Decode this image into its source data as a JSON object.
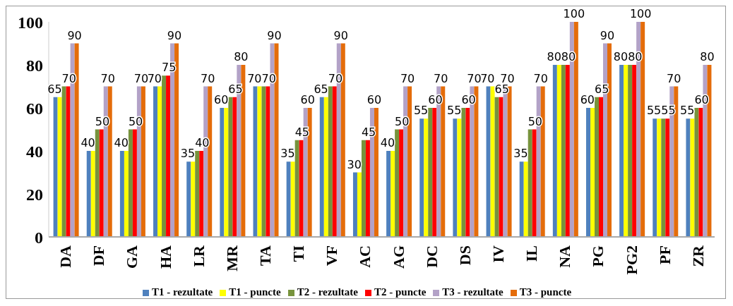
{
  "chart_data": {
    "type": "bar",
    "categories": [
      "DA",
      "DF",
      "GA",
      "HA",
      "LR",
      "MR",
      "TA",
      "TI",
      "VF",
      "AC",
      "AG",
      "DC",
      "DS",
      "IV",
      "IL",
      "NA",
      "PG",
      "PG2",
      "PF",
      "ZR"
    ],
    "series": [
      {
        "name": "T1 - rezultate",
        "color": "#4f81bd",
        "values": [
          65,
          40,
          40,
          70,
          35,
          60,
          70,
          35,
          65,
          30,
          40,
          55,
          55,
          70,
          35,
          80,
          60,
          80,
          55,
          55
        ],
        "value_labels": [
          "65",
          "40",
          "40",
          "70",
          "35",
          "60",
          "70",
          "35",
          "65",
          "30",
          "40",
          "55",
          "55",
          "70",
          "35",
          "80",
          "60",
          "80",
          "55",
          "55"
        ]
      },
      {
        "name": "T1 - puncte",
        "color": "#ffff00",
        "values": [
          65,
          40,
          40,
          70,
          35,
          60,
          70,
          35,
          65,
          30,
          40,
          55,
          55,
          70,
          35,
          80,
          60,
          80,
          55,
          55
        ]
      },
      {
        "name": "T2 - rezultate",
        "color": "#77933c",
        "values": [
          70,
          50,
          50,
          75,
          40,
          65,
          70,
          45,
          70,
          45,
          50,
          60,
          60,
          65,
          50,
          80,
          65,
          80,
          55,
          60
        ],
        "value_labels": [
          "70",
          "50",
          "50",
          "75",
          "40",
          "65",
          "70",
          "45",
          "70",
          "45",
          "50",
          "60",
          "60",
          "65",
          "50",
          "80",
          "65",
          "80",
          "55",
          "60"
        ]
      },
      {
        "name": "T2 - puncte",
        "color": "#ff0000",
        "values": [
          70,
          50,
          50,
          75,
          40,
          65,
          70,
          45,
          70,
          45,
          50,
          60,
          60,
          65,
          50,
          80,
          65,
          80,
          55,
          60
        ]
      },
      {
        "name": "T3 - rezultate",
        "color": "#b3a2c7",
        "values": [
          90,
          70,
          70,
          90,
          70,
          80,
          90,
          60,
          90,
          60,
          70,
          70,
          70,
          70,
          70,
          100,
          90,
          100,
          70,
          80
        ],
        "value_labels": [
          "90",
          "70",
          "70",
          "90",
          "70",
          "80",
          "90",
          "60",
          "90",
          "60",
          "70",
          "70",
          "70",
          "70",
          "70",
          "100",
          "90",
          "100",
          "70",
          "80"
        ]
      },
      {
        "name": "T3 - puncte",
        "color": "#e46c0a",
        "values": [
          90,
          70,
          70,
          90,
          70,
          80,
          90,
          60,
          90,
          60,
          70,
          70,
          70,
          70,
          70,
          100,
          90,
          100,
          70,
          80
        ]
      }
    ],
    "ylim": [
      0,
      100
    ],
    "yticks": [
      0,
      20,
      40,
      60,
      80,
      100
    ],
    "grid": false,
    "legend": "bottom"
  }
}
